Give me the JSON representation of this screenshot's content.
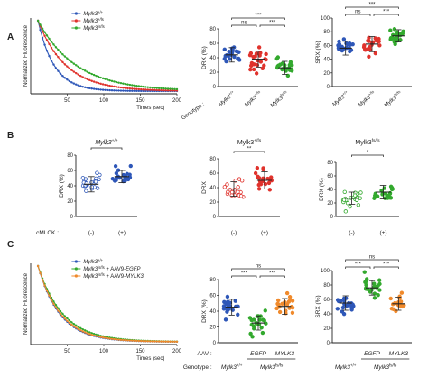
{
  "panel_labels": [
    "A",
    "B",
    "C"
  ],
  "colors": {
    "blue": "#2E57B8",
    "red": "#E0332D",
    "green": "#33A92E",
    "orange": "#F08A2C",
    "black": "#222222"
  },
  "chart_data": [
    {
      "id": "A1",
      "type": "line",
      "ylabel": "Normalized Fluorescence",
      "xlabel": "Times (sec)",
      "xlim": [
        0,
        200
      ],
      "xticks": [
        50,
        100,
        150,
        200
      ],
      "legend_placement": "top-right",
      "series": [
        {
          "name": "Mylk3+/+",
          "color": "#2E57B8",
          "tau": 22
        },
        {
          "name": "Mylk3+/fs",
          "color": "#E0332D",
          "tau": 38
        },
        {
          "name": "Mylk3fs/fs",
          "color": "#33A92E",
          "tau": 52
        }
      ]
    },
    {
      "id": "A2",
      "type": "scatter",
      "ylabel": "DRX (%)",
      "ylim": [
        0,
        80
      ],
      "yticks": [
        0,
        20,
        40,
        60,
        80
      ],
      "x_title": "Genotype :",
      "categories": [
        "Mylk3+/+",
        "Mylk3+/fs",
        "Mylk3fs/fs"
      ],
      "colors": [
        "#2E57B8",
        "#E0332D",
        "#33A92E"
      ],
      "means": [
        44,
        38,
        26
      ],
      "sds": [
        10,
        11,
        9
      ],
      "significance": [
        {
          "from": 0,
          "to": 2,
          "label": "***"
        },
        {
          "from": 0,
          "to": 1,
          "label": "ns"
        },
        {
          "from": 1,
          "to": 2,
          "label": "***"
        }
      ]
    },
    {
      "id": "A3",
      "type": "scatter",
      "ylabel": "SRX (%)",
      "ylim": [
        0,
        100
      ],
      "yticks": [
        0,
        20,
        40,
        60,
        80,
        100
      ],
      "categories": [
        "Mylk3+/+",
        "Mylk3+/fs",
        "Mylk3fs/fs"
      ],
      "colors": [
        "#2E57B8",
        "#E0332D",
        "#33A92E"
      ],
      "means": [
        56,
        62,
        74
      ],
      "sds": [
        10,
        11,
        9
      ],
      "significance": [
        {
          "from": 0,
          "to": 2,
          "label": "***"
        },
        {
          "from": 0,
          "to": 1,
          "label": "ns"
        },
        {
          "from": 1,
          "to": 2,
          "label": "***"
        }
      ]
    },
    {
      "id": "B1",
      "type": "scatter",
      "title": "Mylk3+/+",
      "ylabel": "DRX (%)",
      "ylim": [
        0,
        80
      ],
      "yticks": [
        0,
        20,
        40,
        60,
        80
      ],
      "x_title": "cMLCK :",
      "categories": [
        "(-)",
        "(+)"
      ],
      "colors": [
        "#2E57B8",
        "#2E57B8"
      ],
      "filled": [
        false,
        true
      ],
      "means": [
        42,
        52
      ],
      "sds": [
        10,
        8
      ],
      "significance": [
        {
          "from": 0,
          "to": 1,
          "label": "**"
        }
      ]
    },
    {
      "id": "B2",
      "type": "scatter",
      "title": "Mylk3+/fs",
      "ylabel": "DRX",
      "ylim": [
        0,
        80
      ],
      "yticks": [
        0,
        20,
        40,
        60,
        80
      ],
      "categories": [
        "(-)",
        "(+)"
      ],
      "colors": [
        "#E0332D",
        "#E0332D"
      ],
      "filled": [
        false,
        true
      ],
      "means": [
        38,
        50
      ],
      "sds": [
        10,
        12
      ],
      "significance": [
        {
          "from": 0,
          "to": 1,
          "label": "**"
        }
      ]
    },
    {
      "id": "B3",
      "type": "scatter",
      "title": "Mylk3fs/fs",
      "ylabel": "DRX (%)",
      "ylim": [
        0,
        80
      ],
      "yticks": [
        0,
        20,
        40,
        60,
        80
      ],
      "categories": [
        "(-)",
        "(+)"
      ],
      "colors": [
        "#33A92E",
        "#33A92E"
      ],
      "filled": [
        false,
        true
      ],
      "means": [
        27,
        36
      ],
      "sds": [
        9,
        10
      ],
      "significance": [
        {
          "from": 0,
          "to": 1,
          "label": "*"
        }
      ]
    },
    {
      "id": "C1",
      "type": "line",
      "ylabel": "Normalized Fluorescence",
      "xlabel": "Times (sec)",
      "xlim": [
        0,
        200
      ],
      "xticks": [
        50,
        100,
        150,
        200
      ],
      "legend_placement": "top-right",
      "series": [
        {
          "name": "Mylk3+/+",
          "color": "#2E57B8",
          "tau": 30
        },
        {
          "name": "Mylk3fs/fs + AAV9-EGFP",
          "color": "#33A92E",
          "tau": 34
        },
        {
          "name": "Mylk3fs/fs + AAV9-MYLK3",
          "color": "#F08A2C",
          "tau": 31
        }
      ]
    },
    {
      "id": "C2",
      "type": "scatter",
      "ylabel": "DRX (%)",
      "ylim": [
        0,
        80
      ],
      "yticks": [
        0,
        20,
        40,
        60,
        80
      ],
      "row_titles": [
        "AAV :",
        "Genotype :"
      ],
      "categories": [
        "-",
        "EGFP",
        "MYLK3"
      ],
      "genotypes": [
        "Mylk3+/+",
        "Mylk3fs/fs"
      ],
      "colors": [
        "#2E57B8",
        "#33A92E",
        "#F08A2C"
      ],
      "means": [
        45,
        25,
        46
      ],
      "sds": [
        10,
        9,
        10
      ],
      "significance": [
        {
          "from": 0,
          "to": 2,
          "label": "ns"
        },
        {
          "from": 0,
          "to": 1,
          "label": "***"
        },
        {
          "from": 1,
          "to": 2,
          "label": "***"
        }
      ]
    },
    {
      "id": "C3",
      "type": "scatter",
      "ylabel": "SRX (%)",
      "ylim": [
        0,
        100
      ],
      "yticks": [
        0,
        20,
        40,
        60,
        80,
        100
      ],
      "categories": [
        "-",
        "EGFP",
        "MYLK3"
      ],
      "genotypes": [
        "Mylk3+/+",
        "Mylk3fs/fs"
      ],
      "colors": [
        "#2E57B8",
        "#33A92E",
        "#F08A2C"
      ],
      "means": [
        55,
        76,
        54
      ],
      "sds": [
        10,
        10,
        9
      ],
      "significance": [
        {
          "from": 0,
          "to": 2,
          "label": "ns"
        },
        {
          "from": 0,
          "to": 1,
          "label": "***"
        },
        {
          "from": 1,
          "to": 2,
          "label": "***"
        }
      ]
    }
  ]
}
